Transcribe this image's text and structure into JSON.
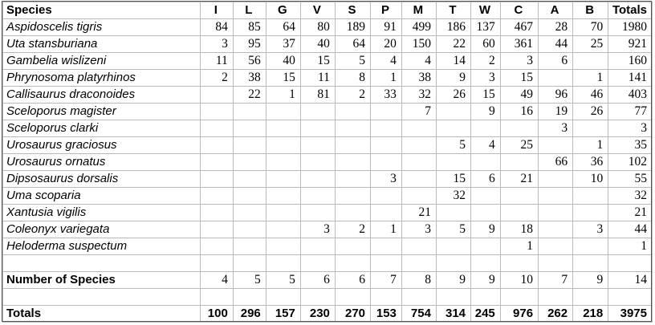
{
  "table": {
    "header": {
      "species_label": "Species",
      "columns": [
        "I",
        "L",
        "G",
        "V",
        "S",
        "P",
        "M",
        "T",
        "W",
        "C",
        "A",
        "B"
      ],
      "totals_label": "Totals"
    },
    "rows": [
      {
        "species": "Aspidoscelis tigris",
        "values": [
          "84",
          "85",
          "64",
          "80",
          "189",
          "91",
          "499",
          "186",
          "137",
          "467",
          "28",
          "70"
        ],
        "total": "1980"
      },
      {
        "species": "Uta stansburiana",
        "values": [
          "3",
          "95",
          "37",
          "40",
          "64",
          "20",
          "150",
          "22",
          "60",
          "361",
          "44",
          "25"
        ],
        "total": "921"
      },
      {
        "species": "Gambelia wislizeni",
        "values": [
          "11",
          "56",
          "40",
          "15",
          "5",
          "4",
          "4",
          "14",
          "2",
          "3",
          "6",
          ""
        ],
        "total": "160"
      },
      {
        "species": "Phrynosoma platyrhinos",
        "values": [
          "2",
          "38",
          "15",
          "11",
          "8",
          "1",
          "38",
          "9",
          "3",
          "15",
          "",
          "1"
        ],
        "total": "141"
      },
      {
        "species": "Callisaurus draconoides",
        "values": [
          "",
          "22",
          "1",
          "81",
          "2",
          "33",
          "32",
          "26",
          "15",
          "49",
          "96",
          "46"
        ],
        "total": "403"
      },
      {
        "species": "Sceloporus magister",
        "values": [
          "",
          "",
          "",
          "",
          "",
          "",
          "7",
          "",
          "9",
          "16",
          "19",
          "26"
        ],
        "total": "77"
      },
      {
        "species": "Sceloporus clarki",
        "values": [
          "",
          "",
          "",
          "",
          "",
          "",
          "",
          "",
          "",
          "",
          "3",
          ""
        ],
        "total": "3"
      },
      {
        "species": "Urosaurus graciosus",
        "values": [
          "",
          "",
          "",
          "",
          "",
          "",
          "",
          "5",
          "4",
          "25",
          "",
          "1"
        ],
        "total": "35"
      },
      {
        "species": "Urosaurus ornatus",
        "values": [
          "",
          "",
          "",
          "",
          "",
          "",
          "",
          "",
          "",
          "",
          "66",
          "36"
        ],
        "total": "102"
      },
      {
        "species": "Dipsosaurus dorsalis",
        "values": [
          "",
          "",
          "",
          "",
          "",
          "3",
          "",
          "15",
          "6",
          "21",
          "",
          "10"
        ],
        "total": "55"
      },
      {
        "species": "Uma scoparia",
        "values": [
          "",
          "",
          "",
          "",
          "",
          "",
          "",
          "32",
          "",
          "",
          "",
          ""
        ],
        "total": "32"
      },
      {
        "species": "Xantusia vigilis",
        "values": [
          "",
          "",
          "",
          "",
          "",
          "",
          "21",
          "",
          "",
          "",
          "",
          ""
        ],
        "total": "21"
      },
      {
        "species": "Coleonyx variegata",
        "values": [
          "",
          "",
          "",
          "3",
          "2",
          "1",
          "3",
          "5",
          "9",
          "18",
          "",
          "3"
        ],
        "total": "44"
      },
      {
        "species": "Heloderma suspectum",
        "values": [
          "",
          "",
          "",
          "",
          "",
          "",
          "",
          "",
          "",
          "1",
          "",
          ""
        ],
        "total": "1"
      }
    ],
    "number_of_species": {
      "label": "Number of Species",
      "values": [
        "4",
        "5",
        "5",
        "6",
        "6",
        "7",
        "8",
        "9",
        "9",
        "10",
        "7",
        "9"
      ],
      "total": "14"
    },
    "totals_row": {
      "label": "Totals",
      "values": [
        "100",
        "296",
        "157",
        "230",
        "270",
        "153",
        "754",
        "314",
        "245",
        "976",
        "262",
        "218"
      ],
      "total": "3975"
    }
  }
}
